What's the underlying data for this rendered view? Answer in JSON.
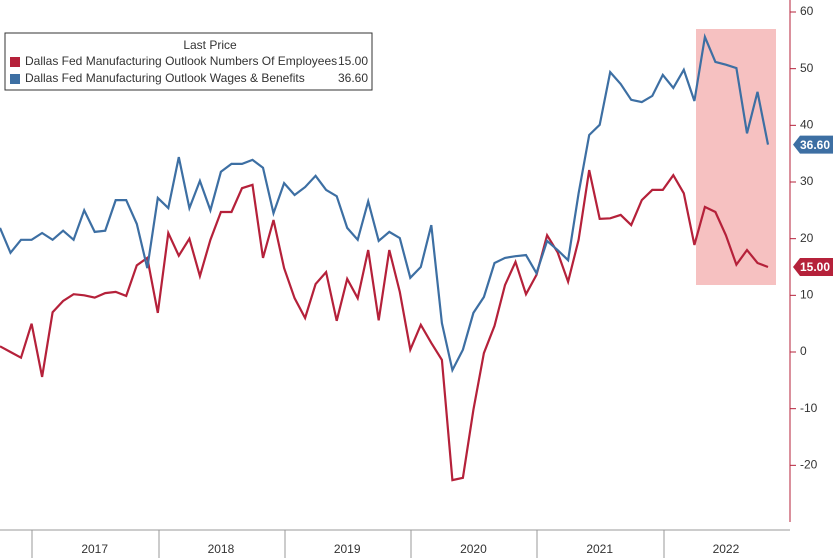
{
  "chart_data": {
    "type": "line",
    "legend_title": "Last Price",
    "categories": [
      null,
      null,
      null,
      null,
      null,
      null,
      null,
      null,
      null,
      "2017",
      null,
      null,
      null,
      null,
      null,
      null,
      null,
      null,
      null,
      null,
      null,
      "2018",
      null,
      null,
      null,
      null,
      null,
      null,
      null,
      null,
      null,
      null,
      null,
      "2019",
      null,
      null,
      null,
      null,
      null,
      null,
      null,
      null,
      null,
      null,
      null,
      "2020",
      null,
      null,
      null,
      null,
      null,
      null,
      null,
      null,
      null,
      null,
      null,
      "2021",
      null,
      null,
      null,
      null,
      null,
      null,
      null,
      null,
      null,
      null,
      null,
      "2022",
      null,
      null,
      null,
      null
    ],
    "series": [
      {
        "name": "Dallas Fed Manufacturing Outlook Numbers Of Employees",
        "color": "#b5213a",
        "last_label": "15.00",
        "values": [
          1.0,
          0,
          -1,
          5,
          -4.4,
          7,
          9,
          10.2,
          10,
          9.6,
          10.4,
          10.6,
          9.9,
          15.3,
          16.6,
          6.9,
          21,
          17,
          20,
          13.4,
          19.8,
          24.7,
          24.7,
          28.9,
          29.5,
          16.6,
          23.3,
          14.8,
          9.5,
          6,
          12,
          14.1,
          5.5,
          12.9,
          9.5,
          18,
          5.6,
          18,
          10.6,
          0.4,
          4.8,
          1.6,
          -1.4,
          -22.6,
          -22.2,
          -10.2,
          -0.2,
          4.6,
          11.8,
          15.9,
          10.2,
          13.6,
          20.6,
          17.6,
          12.4,
          19.8,
          32.1,
          23.5,
          23.6,
          24.2,
          22.4,
          26.8,
          28.6,
          28.6,
          31.2,
          28,
          18.9,
          25.6,
          24.7,
          20.6,
          15.4,
          18,
          15.7,
          15.0
        ]
      },
      {
        "name": "Dallas Fed Manufacturing Outlook Wages & Benefits",
        "color": "#3d6fa3",
        "last_label": "36.60",
        "values": [
          21.9,
          17.5,
          19.8,
          19.8,
          21,
          19.8,
          21.4,
          19.8,
          25,
          21.2,
          21.4,
          26.8,
          26.8,
          22.6,
          14.8,
          27.2,
          25.4,
          34.4,
          25.4,
          30.2,
          25,
          31.8,
          33.2,
          33.2,
          33.9,
          32.5,
          24.5,
          29.8,
          27.7,
          29.1,
          31.1,
          28.6,
          27.5,
          21.9,
          19.8,
          26.6,
          19.6,
          21.2,
          20.1,
          13.1,
          15,
          22.4,
          5.1,
          -3.2,
          0.4,
          6.9,
          9.7,
          15.7,
          16.6,
          16.9,
          17.1,
          13.9,
          19.6,
          18,
          16.2,
          28,
          38.3,
          40.1,
          49.4,
          47.3,
          44.5,
          44.1,
          45.2,
          48.9,
          46.6,
          49.8,
          44.3,
          55.6,
          51.2,
          50.7,
          50.1,
          38.6,
          45.9,
          36.6
        ]
      }
    ],
    "ylim": [
      -30,
      60
    ],
    "yticks": [
      -20,
      -10,
      0,
      10,
      20,
      30,
      40,
      50,
      60
    ]
  }
}
